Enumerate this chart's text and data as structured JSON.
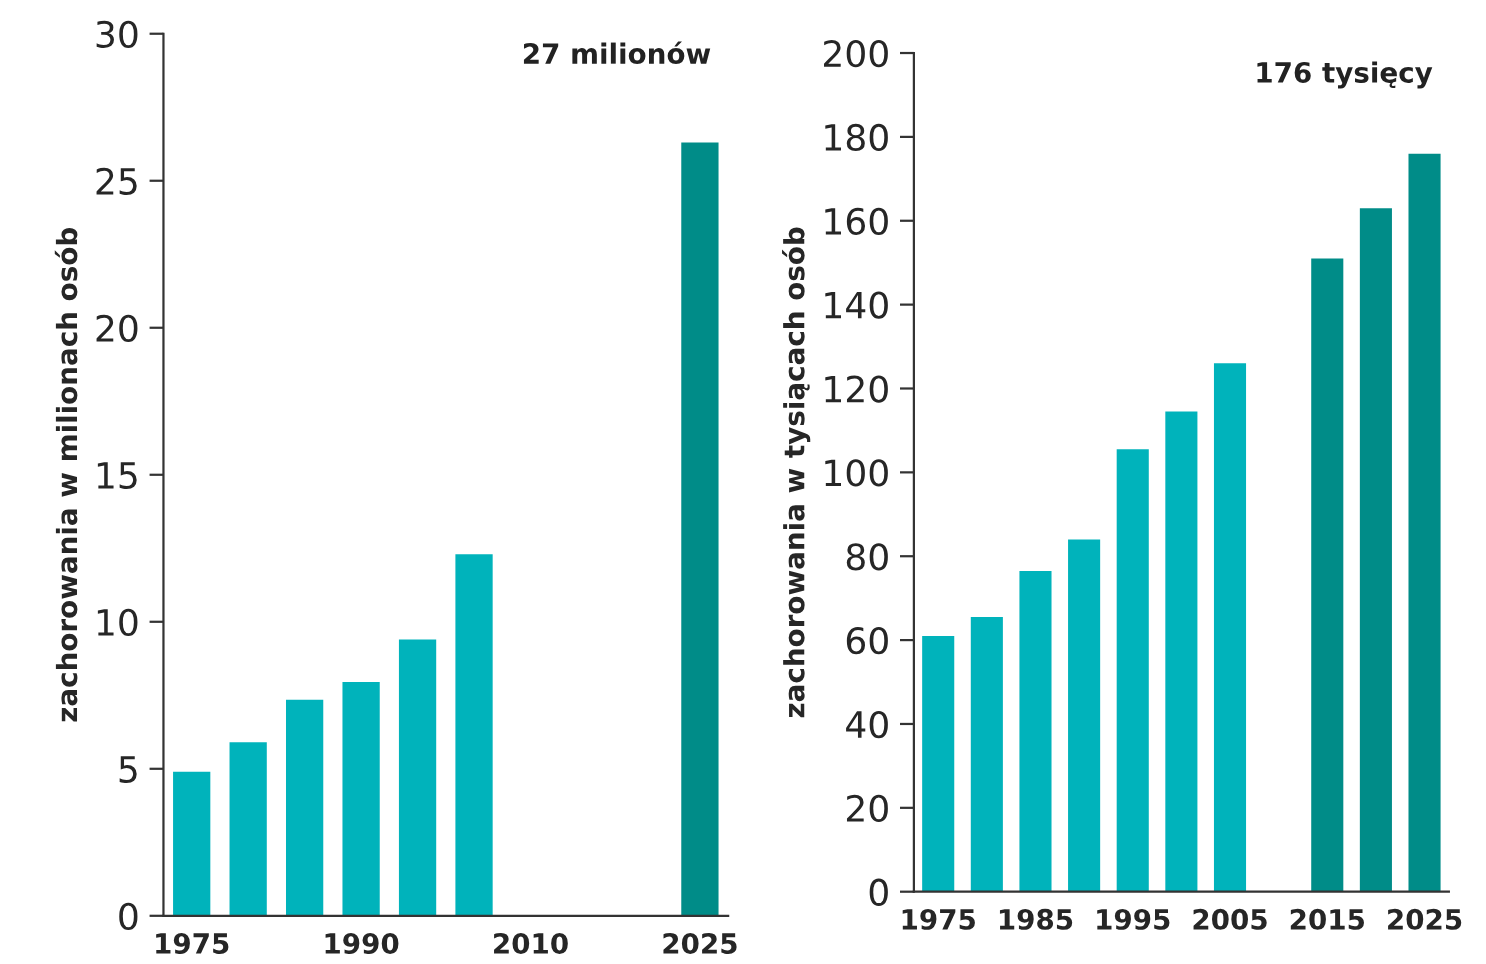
{
  "chart_data": [
    {
      "type": "bar",
      "ylabel": "zachorowania w milionach osób",
      "annotations": [
        "27 milionów"
      ],
      "categories": [
        "1975",
        null,
        null,
        "1990",
        null,
        null,
        "2010",
        null,
        null,
        "2025"
      ],
      "values": [
        4.9,
        5.9,
        7.35,
        7.95,
        9.4,
        12.3,
        null,
        null,
        null,
        26.3
      ],
      "colors": [
        "#00b3bb",
        "#00b3bb",
        "#00b3bb",
        "#00b3bb",
        "#00b3bb",
        "#00b3bb",
        null,
        null,
        null,
        "#008c88"
      ],
      "ylim": [
        0,
        30
      ],
      "yticks": [
        0,
        5,
        10,
        15,
        20,
        25,
        30
      ],
      "grid": false,
      "legend": false
    },
    {
      "type": "bar",
      "ylabel": "zachorowania w tysiącach osób",
      "annotations": [
        "176 tysięcy"
      ],
      "categories": [
        "1975",
        null,
        "1985",
        null,
        "1995",
        null,
        "2005",
        null,
        "2015",
        null,
        "2025"
      ],
      "values": [
        61,
        65.5,
        76.5,
        84,
        105.5,
        114.5,
        126,
        null,
        151,
        163,
        176
      ],
      "colors": [
        "#00b3bb",
        "#00b3bb",
        "#00b3bb",
        "#00b3bb",
        "#00b3bb",
        "#00b3bb",
        "#00b3bb",
        null,
        "#008c88",
        "#008c88",
        "#008c88"
      ],
      "ylim": [
        0,
        200
      ],
      "yticks": [
        0,
        20,
        40,
        60,
        80,
        100,
        120,
        140,
        160,
        180,
        200
      ],
      "grid": false,
      "legend": false
    }
  ]
}
